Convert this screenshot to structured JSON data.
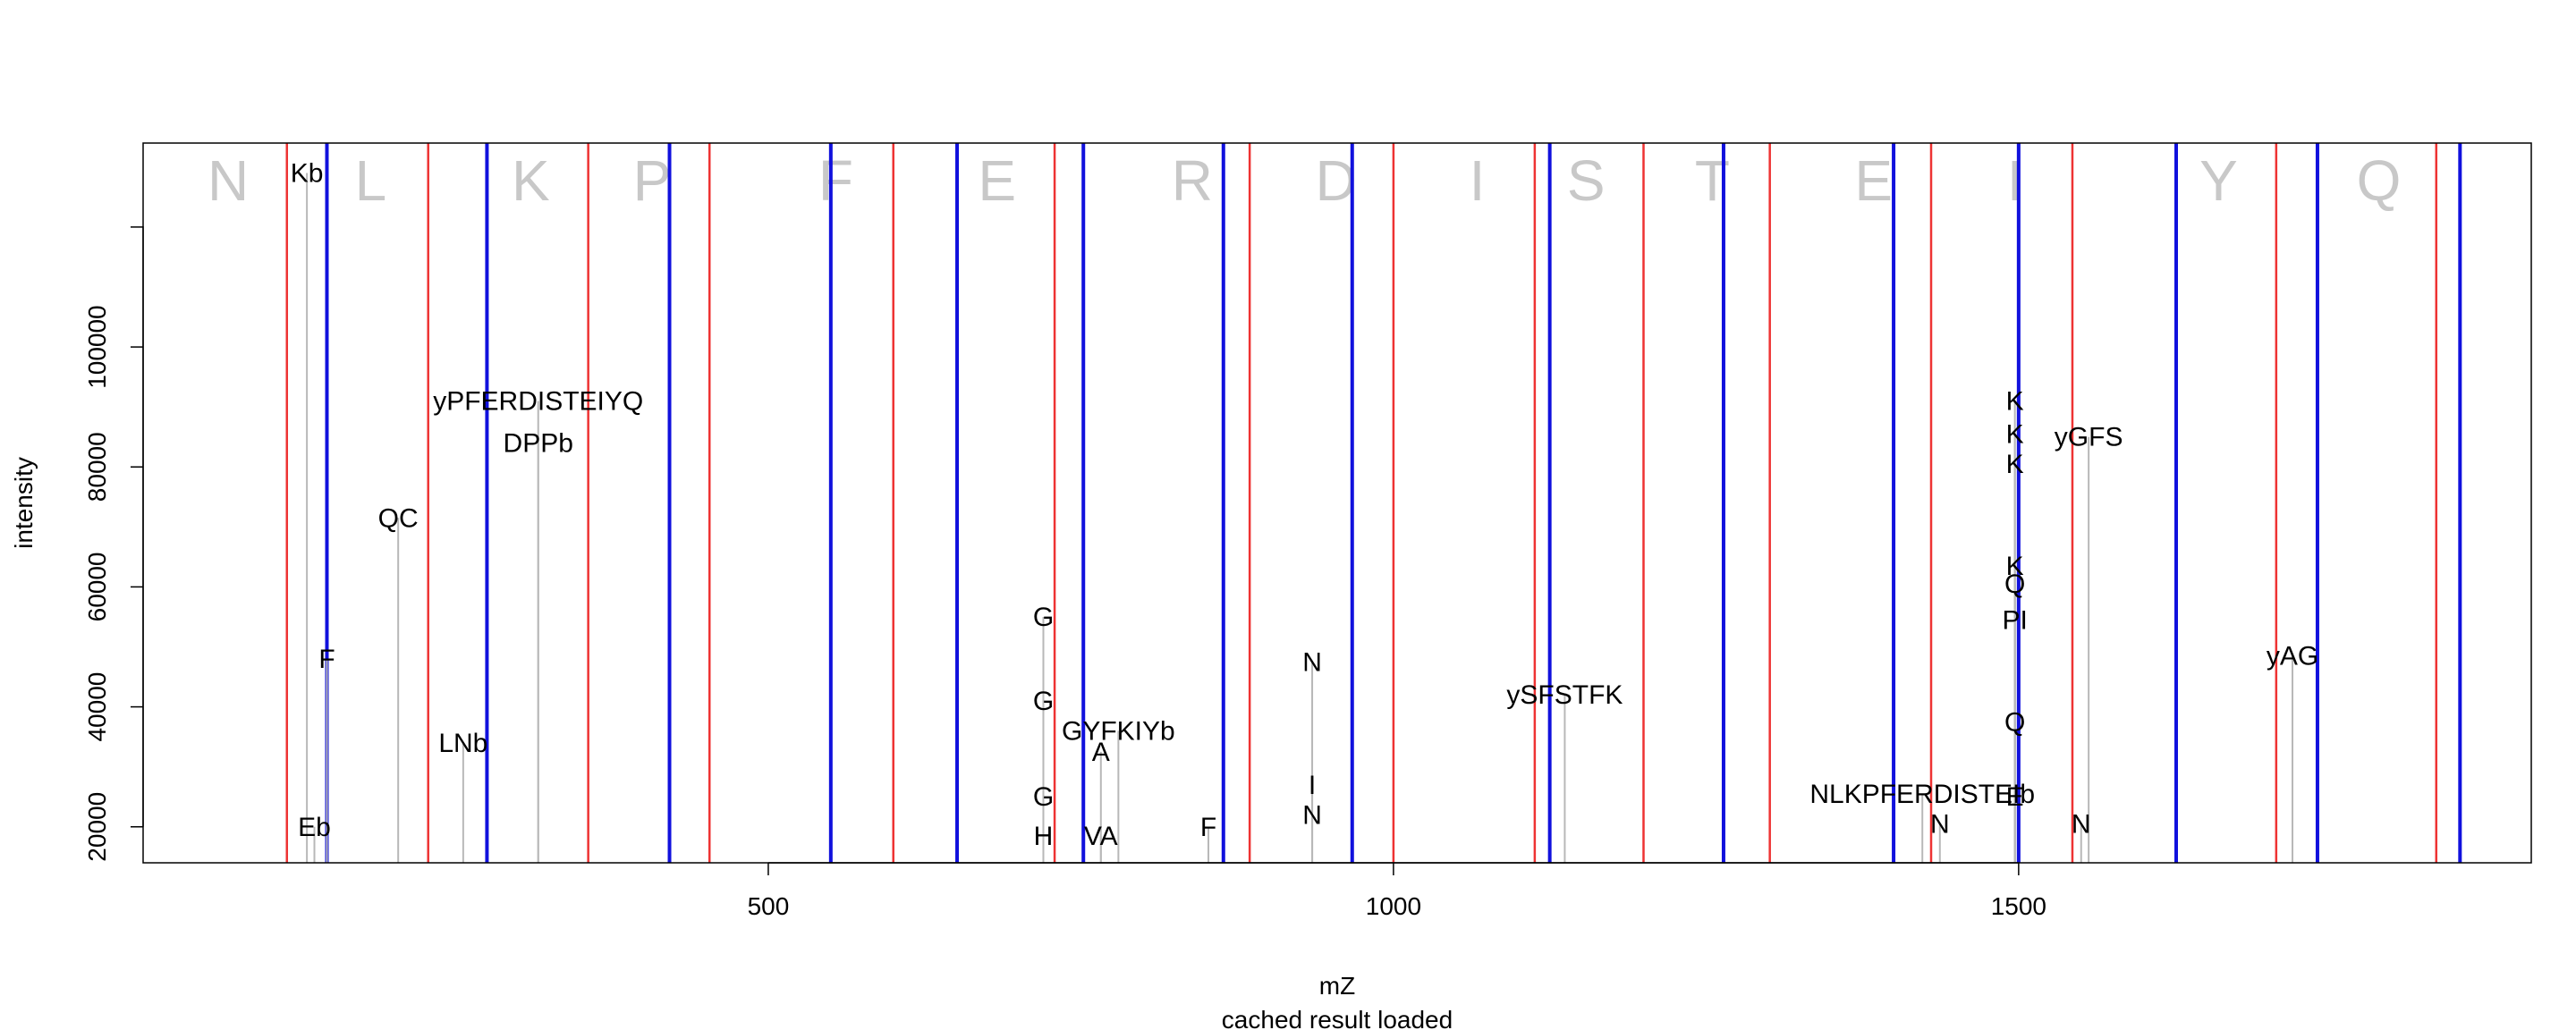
{
  "chart_data": {
    "type": "spectrum",
    "xlabel": "mZ",
    "ylabel": "intensity",
    "subtitle": "cached result loaded",
    "xlim": [
      0,
      1910
    ],
    "ylim": [
      14000,
      134000
    ],
    "x_ticks": [
      500,
      1000,
      1500
    ],
    "y_ticks": [
      20000,
      40000,
      60000,
      80000,
      100000
    ],
    "colors": {
      "b_ion_lines": "#ee3333",
      "y_ion_lines": "#1111dd",
      "peaks": "#b8b8b8",
      "residue_labels": "#c8c8c8"
    },
    "residues": [
      {
        "aa": "N",
        "mz": 68
      },
      {
        "aa": "L",
        "mz": 182
      },
      {
        "aa": "K",
        "mz": 310
      },
      {
        "aa": "P",
        "mz": 407
      },
      {
        "aa": "F",
        "mz": 554
      },
      {
        "aa": "E",
        "mz": 683
      },
      {
        "aa": "R",
        "mz": 839
      },
      {
        "aa": "D",
        "mz": 954
      },
      {
        "aa": "I",
        "mz": 1067
      },
      {
        "aa": "S",
        "mz": 1154
      },
      {
        "aa": "T",
        "mz": 1255
      },
      {
        "aa": "E",
        "mz": 1384
      },
      {
        "aa": "I",
        "mz": 1497
      },
      {
        "aa": "Y",
        "mz": 1660
      },
      {
        "aa": "Q",
        "mz": 1788
      }
    ],
    "b_ion_lines": [
      115,
      228,
      356,
      453,
      600,
      729,
      885,
      1000,
      1113,
      1200,
      1301,
      1430,
      1543,
      1706,
      1834
    ],
    "y_ion_lines": [
      147,
      275,
      421,
      550,
      651,
      752,
      864,
      967,
      1125,
      1264,
      1400,
      1500,
      1626,
      1739,
      1853
    ],
    "peaks": [
      {
        "mz": 131,
        "intensity": 129000,
        "label": "Kb"
      },
      {
        "mz": 137,
        "intensity": 20000,
        "label": "Eb"
      },
      {
        "mz": 147,
        "intensity": 48000,
        "label": "F"
      },
      {
        "mz": 204,
        "intensity": 71500,
        "label": "QC"
      },
      {
        "mz": 256,
        "intensity": 34000,
        "label": "LNb"
      },
      {
        "mz": 316,
        "intensity": 91000,
        "label": "yPFERDISTEIYQ"
      },
      {
        "mz": 316,
        "intensity": 84000,
        "label": "DPPb"
      },
      {
        "mz": 720,
        "intensity": 55000,
        "label": "G"
      },
      {
        "mz": 720,
        "intensity": 41000,
        "label": "G"
      },
      {
        "mz": 720,
        "intensity": 25000,
        "label": "G"
      },
      {
        "mz": 720,
        "intensity": 18500,
        "label": "H"
      },
      {
        "mz": 780,
        "intensity": 36000,
        "label": "GYFKIYb"
      },
      {
        "mz": 766,
        "intensity": 32500,
        "label": "A"
      },
      {
        "mz": 766,
        "intensity": 18500,
        "label": "VA"
      },
      {
        "mz": 852,
        "intensity": 20000,
        "label": "F"
      },
      {
        "mz": 935,
        "intensity": 47500,
        "label": "N"
      },
      {
        "mz": 935,
        "intensity": 27000,
        "label": "I"
      },
      {
        "mz": 935,
        "intensity": 22000,
        "label": "N"
      },
      {
        "mz": 1137,
        "intensity": 42000,
        "label": "ySFSTFK"
      },
      {
        "mz": 1423,
        "intensity": 25500,
        "label": "NLKPFERDISTEIb"
      },
      {
        "mz": 1437,
        "intensity": 20500,
        "label": "N"
      },
      {
        "mz": 1497,
        "intensity": 91000,
        "label": "K"
      },
      {
        "mz": 1497,
        "intensity": 85500,
        "label": "K"
      },
      {
        "mz": 1497,
        "intensity": 80500,
        "label": "K"
      },
      {
        "mz": 1556,
        "intensity": 85000,
        "label": "yGFS"
      },
      {
        "mz": 1497,
        "intensity": 63500,
        "label": "K"
      },
      {
        "mz": 1497,
        "intensity": 60500,
        "label": "Q"
      },
      {
        "mz": 1497,
        "intensity": 54500,
        "label": "PI"
      },
      {
        "mz": 1497,
        "intensity": 37500,
        "label": "Q"
      },
      {
        "mz": 1497,
        "intensity": 25000,
        "label": "E"
      },
      {
        "mz": 1550,
        "intensity": 20500,
        "label": "N"
      },
      {
        "mz": 1719,
        "intensity": 48500,
        "label": "yAG"
      }
    ]
  }
}
